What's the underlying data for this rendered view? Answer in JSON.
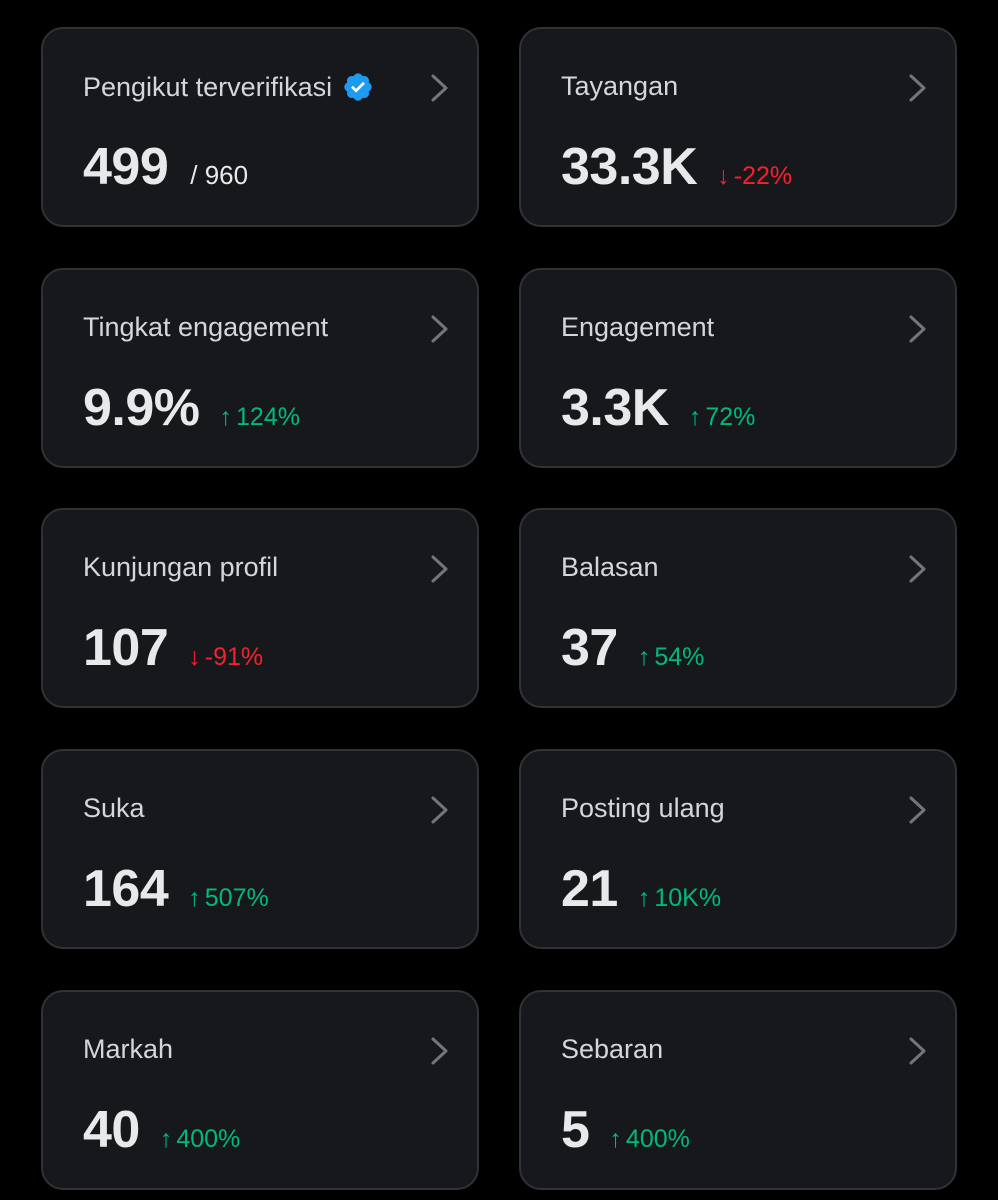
{
  "colors": {
    "background": "#000000",
    "card": "#16181c",
    "border": "#2f3336",
    "up": "#00ba7c",
    "down": "#f4212e",
    "verified": "#1d9bf0"
  },
  "cards": [
    {
      "title": "Pengikut terverifikasi",
      "value": "499",
      "sub": "/ 960",
      "verified": true
    },
    {
      "title": "Tayangan",
      "value": "33.3K",
      "arrow": "↓",
      "change": "-22%",
      "direction": "down"
    },
    {
      "title": "Tingkat engagement",
      "value": "9.9%",
      "arrow": "↑",
      "change": "124%",
      "direction": "up"
    },
    {
      "title": "Engagement",
      "value": "3.3K",
      "arrow": "↑",
      "change": "72%",
      "direction": "up"
    },
    {
      "title": "Kunjungan profil",
      "value": "107",
      "arrow": "↓",
      "change": "-91%",
      "direction": "down"
    },
    {
      "title": "Balasan",
      "value": "37",
      "arrow": "↑",
      "change": "54%",
      "direction": "up"
    },
    {
      "title": "Suka",
      "value": "164",
      "arrow": "↑",
      "change": "507%",
      "direction": "up"
    },
    {
      "title": "Posting ulang",
      "value": "21",
      "arrow": "↑",
      "change": "10K%",
      "direction": "up"
    },
    {
      "title": "Markah",
      "value": "40",
      "arrow": "↑",
      "change": "400%",
      "direction": "up"
    },
    {
      "title": "Sebaran",
      "value": "5",
      "arrow": "↑",
      "change": "400%",
      "direction": "up"
    }
  ]
}
